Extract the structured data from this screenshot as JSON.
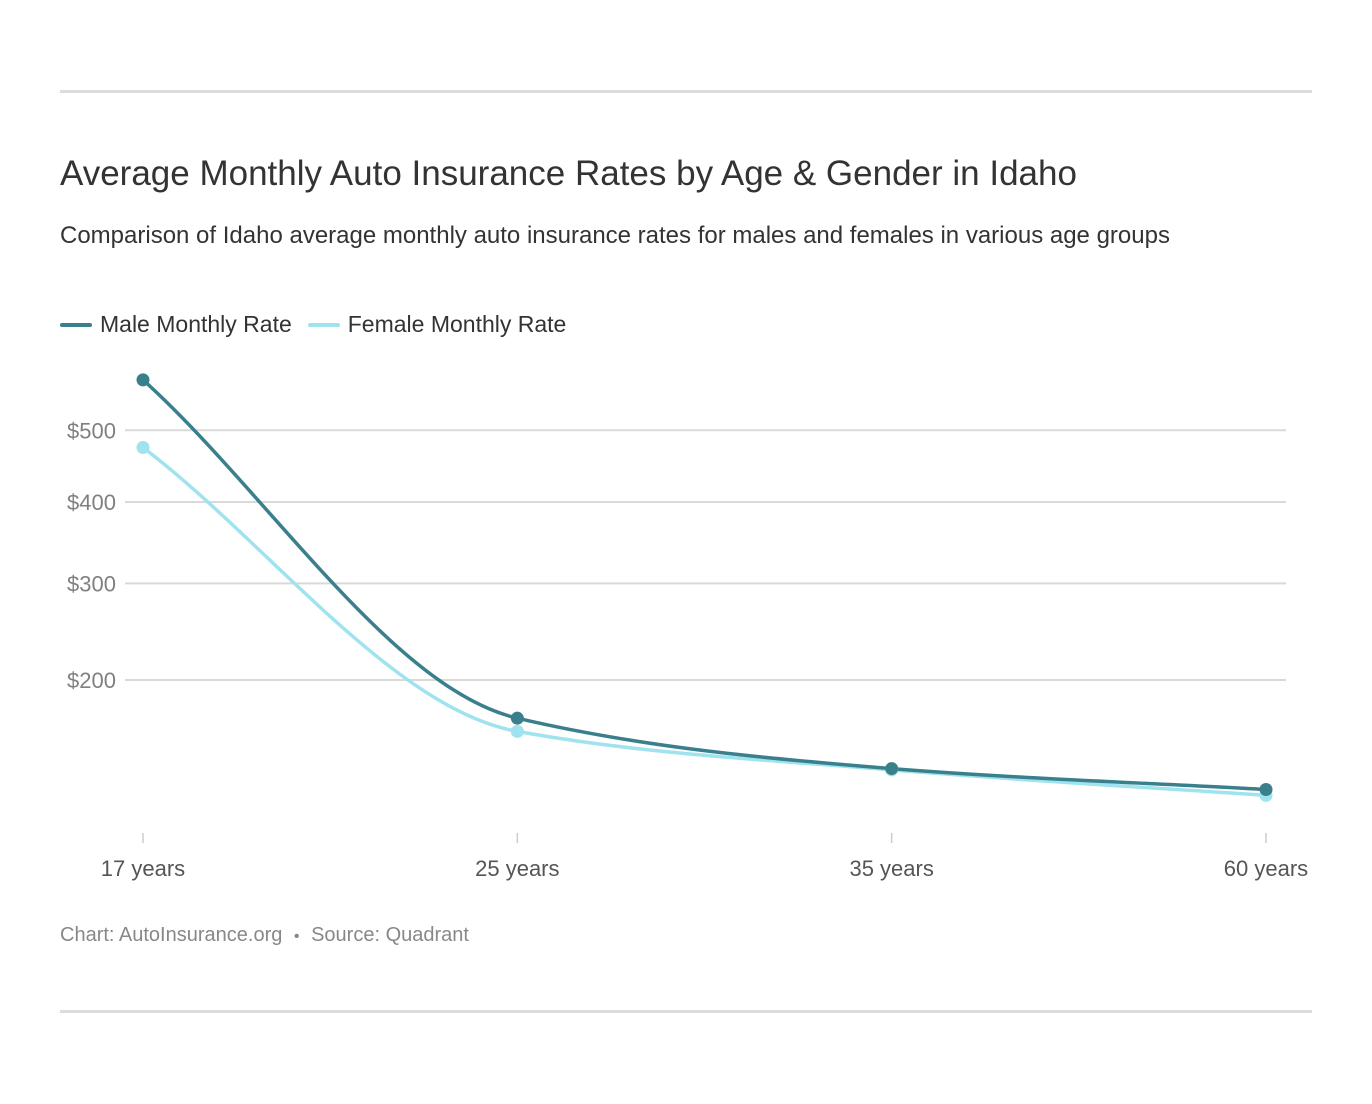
{
  "header": {
    "title": "Average Monthly Auto Insurance Rates by Age & Gender in Idaho",
    "subtitle": "Comparison of Idaho average monthly auto insurance rates for males and females in various age groups"
  },
  "legend": {
    "male": "Male Monthly Rate",
    "female": "Female Monthly Rate"
  },
  "footer": {
    "chart_credit": "Chart: AutoInsurance.org",
    "separator": "•",
    "source": "Source: Quadrant"
  },
  "colors": {
    "male": "#3a7f8c",
    "female": "#9fe3ef",
    "grid": "#d9d9d9"
  },
  "chart_data": {
    "type": "line",
    "scale": "sqrt",
    "categories": [
      "17 years",
      "25 years",
      "35 years",
      "60 years"
    ],
    "series": [
      {
        "name": "Male Monthly Rate",
        "values": [
          577,
          166,
          126,
          111
        ]
      },
      {
        "name": "Female Monthly Rate",
        "values": [
          475,
          155,
          125,
          107
        ]
      }
    ],
    "yticks": [
      200,
      300,
      400,
      500
    ],
    "ytick_labels": [
      "$200",
      "$300",
      "$400",
      "$500"
    ],
    "ylim": [
      100,
      600
    ],
    "grid": true,
    "legend_position": "top-left"
  }
}
